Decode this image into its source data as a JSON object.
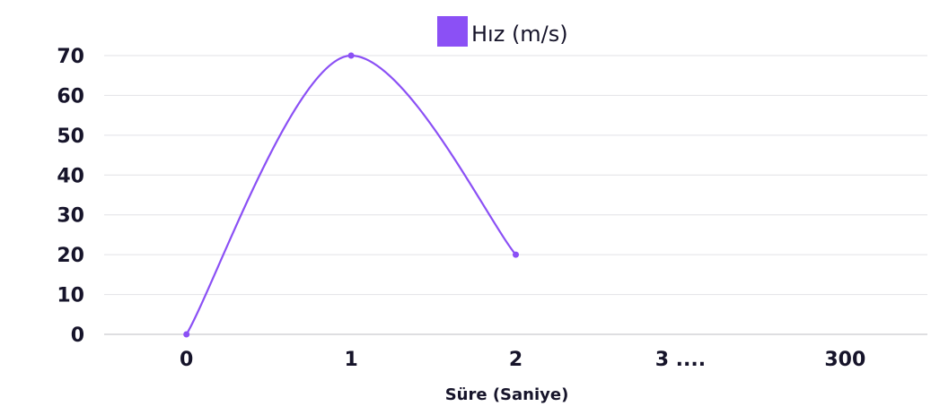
{
  "chart_data": {
    "type": "line",
    "categories": [
      "0",
      "1",
      "2",
      "3 ....",
      "300"
    ],
    "series": [
      {
        "name": "Hız (m/s)",
        "values": [
          0,
          70,
          20,
          null,
          null
        ],
        "color": "#8b50f5"
      }
    ],
    "xlabel": "Süre (Saniye)",
    "ylabel": "",
    "ylim": [
      0,
      70
    ],
    "yticks": [
      0,
      10,
      20,
      30,
      40,
      50,
      60,
      70
    ],
    "grid": true,
    "legend": "top-center",
    "smooth": true
  }
}
